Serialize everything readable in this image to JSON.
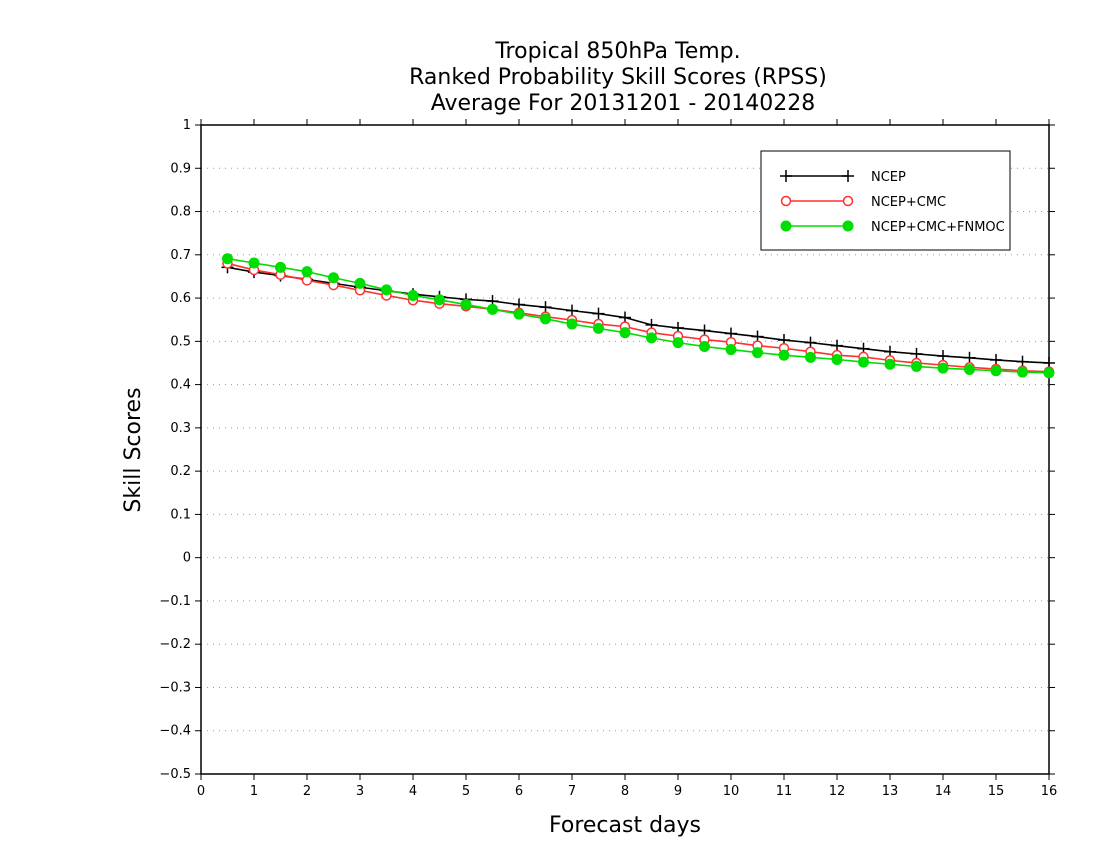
{
  "chart_data": {
    "type": "line",
    "title": [
      "Tropical 850hPa Temp.",
      "Ranked Probability Skill Scores (RPSS)",
      "Average For 20131201 - 20140228"
    ],
    "xlabel": "Forecast days",
    "ylabel": "Skill Scores",
    "xlim": [
      0,
      16
    ],
    "ylim": [
      -0.5,
      1
    ],
    "x_ticks": [
      0,
      1,
      2,
      3,
      4,
      5,
      6,
      7,
      8,
      9,
      10,
      11,
      12,
      13,
      14,
      15,
      16
    ],
    "y_ticks": [
      -0.5,
      -0.4,
      -0.3,
      -0.2,
      -0.1,
      0,
      0.1,
      0.2,
      0.3,
      0.4,
      0.5,
      0.6,
      0.7,
      0.8,
      0.9,
      1
    ],
    "y_tick_labels": [
      "−0.5",
      "−0.4",
      "−0.3",
      "−0.2",
      "−0.1",
      "0",
      "0.1",
      "0.2",
      "0.3",
      "0.4",
      "0.5",
      "0.6",
      "0.7",
      "0.8",
      "0.9",
      "1"
    ],
    "grid": "horizontal-dotted",
    "legend_position": "top-right",
    "x": [
      0.5,
      1,
      1.5,
      2,
      2.5,
      3,
      3.5,
      4,
      4.5,
      5,
      5.5,
      6,
      6.5,
      7,
      7.5,
      8,
      8.5,
      9,
      9.5,
      10,
      10.5,
      11,
      11.5,
      12,
      12.5,
      13,
      13.5,
      14,
      14.5,
      15,
      15.5,
      16
    ],
    "series": [
      {
        "name": "NCEP",
        "color": "#000000",
        "marker": "plus",
        "values": [
          0.671,
          0.66,
          0.652,
          0.643,
          0.634,
          0.625,
          0.617,
          0.609,
          0.603,
          0.597,
          0.593,
          0.585,
          0.579,
          0.571,
          0.564,
          0.555,
          0.538,
          0.531,
          0.525,
          0.518,
          0.511,
          0.503,
          0.497,
          0.49,
          0.483,
          0.476,
          0.471,
          0.466,
          0.462,
          0.457,
          0.453,
          0.45
        ]
      },
      {
        "name": "NCEP+CMC",
        "color": "#ff3030",
        "marker": "open-circle",
        "values": [
          0.68,
          0.665,
          0.654,
          0.641,
          0.63,
          0.618,
          0.606,
          0.595,
          0.587,
          0.581,
          0.574,
          0.566,
          0.557,
          0.549,
          0.54,
          0.534,
          0.52,
          0.512,
          0.504,
          0.498,
          0.49,
          0.484,
          0.476,
          0.468,
          0.464,
          0.456,
          0.45,
          0.445,
          0.44,
          0.436,
          0.432,
          0.43
        ]
      },
      {
        "name": "NCEP+CMC+FNMOC",
        "color": "#00dd00",
        "marker": "filled-circle",
        "values": [
          0.691,
          0.681,
          0.671,
          0.661,
          0.647,
          0.634,
          0.619,
          0.606,
          0.596,
          0.585,
          0.574,
          0.563,
          0.552,
          0.54,
          0.53,
          0.52,
          0.508,
          0.497,
          0.488,
          0.481,
          0.474,
          0.468,
          0.463,
          0.458,
          0.452,
          0.447,
          0.442,
          0.438,
          0.435,
          0.432,
          0.429,
          0.427
        ]
      }
    ]
  }
}
